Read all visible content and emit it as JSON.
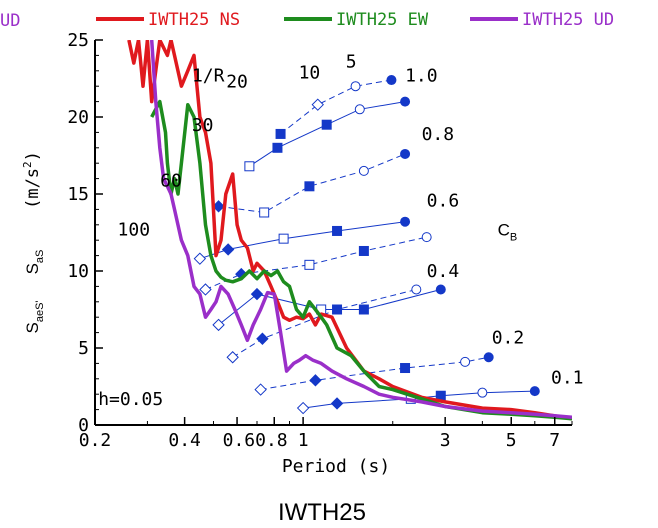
{
  "chart_data": {
    "type": "line",
    "title": "IWTH25",
    "xlabel": "Period (s)",
    "ylabel_left": "(m/s",
    "ylabel_sup": "2",
    "ylabel_sa": "S",
    "ylabel_sa_sub": "aS",
    "ylabel_sae": "S",
    "ylabel_sae_sub": "aeS'",
    "x_scale": "log",
    "xlim": [
      0.2,
      8
    ],
    "ylim": [
      0,
      25
    ],
    "x_ticks": [
      0.2,
      0.4,
      0.6,
      0.8,
      1,
      3,
      5,
      7
    ],
    "x_tick_labels": [
      "0.2",
      "0.4",
      "0.6",
      "0.8",
      "1",
      "3",
      "5",
      "7"
    ],
    "x_tick_label_text": [
      "0.2",
      "0.4",
      "0.60.8",
      "1",
      "3",
      "5",
      "7"
    ],
    "y_ticks": [
      0,
      5,
      10,
      15,
      20,
      25
    ],
    "y_tick_labels": [
      "0",
      "5",
      "10",
      "15",
      "20",
      "25"
    ],
    "legend_placement": "top",
    "legend_clipped_label": "UD",
    "series": [
      {
        "name": "IWTH25 NS",
        "color": "#e0191e",
        "x": [
          0.26,
          0.27,
          0.28,
          0.29,
          0.3,
          0.31,
          0.33,
          0.35,
          0.36,
          0.37,
          0.39,
          0.41,
          0.43,
          0.45,
          0.47,
          0.49,
          0.51,
          0.53,
          0.55,
          0.58,
          0.6,
          0.62,
          0.65,
          0.68,
          0.7,
          0.74,
          0.78,
          0.82,
          0.86,
          0.9,
          0.95,
          1.0,
          1.05,
          1.1,
          1.15,
          1.25,
          1.4,
          1.6,
          1.8,
          2.0,
          2.5,
          3.0,
          4.0,
          5.0,
          6.0,
          7.0,
          8.0
        ],
        "y": [
          25,
          23.5,
          25,
          22,
          25,
          21,
          25,
          24,
          25,
          24,
          22,
          23,
          24,
          20,
          19,
          17,
          11,
          12,
          15,
          16.3,
          13,
          12,
          11.5,
          10,
          10.5,
          10,
          9,
          8,
          7,
          6.8,
          7,
          6.9,
          7.2,
          6.5,
          7.2,
          7,
          5,
          3.5,
          3,
          2.5,
          1.8,
          1.5,
          1.1,
          1.0,
          0.8,
          0.6,
          0.4
        ]
      },
      {
        "name": "IWTH25 EW",
        "color": "#1e8c1e",
        "x": [
          0.31,
          0.33,
          0.345,
          0.35,
          0.36,
          0.37,
          0.38,
          0.39,
          0.41,
          0.43,
          0.45,
          0.46,
          0.47,
          0.49,
          0.51,
          0.53,
          0.55,
          0.58,
          0.62,
          0.66,
          0.7,
          0.74,
          0.78,
          0.82,
          0.86,
          0.9,
          0.95,
          1.0,
          1.05,
          1.1,
          1.15,
          1.2,
          1.3,
          1.45,
          1.6,
          1.8,
          2.0,
          2.5,
          3.0,
          4.0,
          5.0,
          6.0,
          7.0,
          8.0
        ],
        "y": [
          20,
          21,
          19,
          17,
          15,
          16,
          15,
          17,
          20.8,
          20,
          17,
          15,
          13,
          11,
          10,
          9.6,
          9.4,
          9.3,
          9.5,
          10,
          9.5,
          10,
          9.7,
          10,
          9.3,
          9,
          7.5,
          7,
          8,
          7.5,
          7,
          6.5,
          5,
          4.5,
          3.5,
          2.5,
          2.3,
          1.7,
          1.2,
          0.8,
          0.7,
          0.6,
          0.5,
          0.4
        ]
      },
      {
        "name": "IWTH25 UD",
        "color": "#9a2fc9",
        "x": [
          0.31,
          0.32,
          0.33,
          0.34,
          0.35,
          0.36,
          0.37,
          0.39,
          0.41,
          0.43,
          0.45,
          0.47,
          0.49,
          0.51,
          0.53,
          0.56,
          0.59,
          0.62,
          0.65,
          0.68,
          0.72,
          0.76,
          0.8,
          0.84,
          0.88,
          0.93,
          0.97,
          1.02,
          1.08,
          1.15,
          1.25,
          1.4,
          1.6,
          1.8,
          2.0,
          2.5,
          3.0,
          4.0,
          5.0,
          6.0,
          7.0,
          8.0
        ],
        "y": [
          25,
          21,
          18,
          16,
          15.5,
          15,
          14,
          12,
          11,
          9,
          8.5,
          7,
          7.5,
          8,
          9,
          8.5,
          7.5,
          6.5,
          5.5,
          6.5,
          7.5,
          8.6,
          8.5,
          6,
          3.5,
          4,
          4.2,
          4.5,
          4.2,
          4,
          3.5,
          3,
          2.5,
          2,
          1.8,
          1.5,
          1.2,
          0.9,
          0.8,
          0.7,
          0.6,
          0.5
        ]
      }
    ],
    "r_lines": [
      {
        "label": "1.0",
        "dashed": true,
        "points": [
          {
            "x": 0.84,
            "y": 18.9,
            "marker": "square-filled"
          },
          {
            "x": 1.12,
            "y": 20.8,
            "marker": "diamond-open"
          },
          {
            "x": 1.5,
            "y": 22,
            "marker": "circle-open"
          },
          {
            "x": 1.98,
            "y": 22.4,
            "marker": "circle-filled"
          }
        ]
      },
      {
        "label": "0.8",
        "dashed": false,
        "points": [
          {
            "x": 0.66,
            "y": 16.8,
            "marker": "square-open"
          },
          {
            "x": 0.82,
            "y": 18,
            "marker": "square-filled"
          },
          {
            "x": 1.2,
            "y": 19.5,
            "marker": "square-filled"
          },
          {
            "x": 1.55,
            "y": 20.5,
            "marker": "circle-open"
          },
          {
            "x": 2.2,
            "y": 21,
            "marker": "circle-filled"
          }
        ]
      },
      {
        "label": "0.6",
        "dashed": true,
        "points": [
          {
            "x": 0.52,
            "y": 14.2,
            "marker": "diamond-filled"
          },
          {
            "x": 0.74,
            "y": 13.8,
            "marker": "square-open"
          },
          {
            "x": 1.05,
            "y": 15.5,
            "marker": "square-filled"
          },
          {
            "x": 1.6,
            "y": 16.5,
            "marker": "circle-open"
          },
          {
            "x": 2.2,
            "y": 17.6,
            "marker": "circle-filled"
          }
        ]
      },
      {
        "label": "0.4",
        "dashed": false,
        "points": [
          {
            "x": 0.45,
            "y": 10.8,
            "marker": "diamond-open"
          },
          {
            "x": 0.56,
            "y": 11.4,
            "marker": "diamond-filled"
          },
          {
            "x": 0.86,
            "y": 12.1,
            "marker": "square-open"
          },
          {
            "x": 1.3,
            "y": 12.6,
            "marker": "square-filled"
          },
          {
            "x": 2.2,
            "y": 13.2,
            "marker": "circle-filled"
          }
        ]
      },
      {
        "label": "0.2",
        "dashed": true,
        "points": [
          {
            "x": 0.47,
            "y": 8.8,
            "marker": "diamond-open"
          },
          {
            "x": 0.62,
            "y": 9.8,
            "marker": "diamond-filled"
          },
          {
            "x": 1.05,
            "y": 10.4,
            "marker": "square-open"
          },
          {
            "x": 1.6,
            "y": 11.3,
            "marker": "square-filled"
          },
          {
            "x": 2.6,
            "y": 12.2,
            "marker": "circle-open"
          }
        ]
      },
      {
        "label": "0.1",
        "dashed": false,
        "points": [
          {
            "x": 0.52,
            "y": 6.5,
            "marker": "diamond-open"
          },
          {
            "x": 0.7,
            "y": 8.5,
            "marker": "diamond-filled"
          },
          {
            "x": 1.15,
            "y": 7.5,
            "marker": "square-open"
          },
          {
            "x": 1.6,
            "y": 7.5,
            "marker": "square-filled"
          },
          {
            "x": 2.9,
            "y": 8.8,
            "marker": "circle-filled"
          }
        ]
      }
    ],
    "cb_lines_extra": [
      {
        "dashed": true,
        "points": [
          {
            "x": 0.58,
            "y": 4.4,
            "marker": "diamond-open"
          },
          {
            "x": 0.73,
            "y": 5.6,
            "marker": "diamond-filled"
          },
          {
            "x": 1.3,
            "y": 7.5,
            "marker": "square-filled"
          },
          {
            "x": 2.4,
            "y": 8.8,
            "marker": "circle-open"
          }
        ]
      },
      {
        "dashed": true,
        "points": [
          {
            "x": 0.72,
            "y": 2.3,
            "marker": "diamond-open"
          },
          {
            "x": 1.1,
            "y": 2.9,
            "marker": "diamond-filled"
          },
          {
            "x": 2.2,
            "y": 3.7,
            "marker": "square-filled"
          },
          {
            "x": 3.5,
            "y": 4.1,
            "marker": "circle-open"
          },
          {
            "x": 4.2,
            "y": 4.4,
            "marker": "circle-filled"
          }
        ]
      },
      {
        "dashed": false,
        "points": [
          {
            "x": 1.0,
            "y": 1.1,
            "marker": "diamond-open"
          },
          {
            "x": 1.3,
            "y": 1.4,
            "marker": "diamond-filled"
          },
          {
            "x": 2.3,
            "y": 1.7,
            "marker": "square-open"
          },
          {
            "x": 2.9,
            "y": 1.9,
            "marker": "square-filled"
          },
          {
            "x": 4.0,
            "y": 2.1,
            "marker": "circle-open"
          },
          {
            "x": 6.0,
            "y": 2.2,
            "marker": "circle-filled"
          }
        ]
      }
    ],
    "annotations": {
      "r_header": "1/R",
      "r_values": [
        {
          "text": "20",
          "x": 0.6,
          "y": 21.9
        },
        {
          "text": "10",
          "x": 1.05,
          "y": 22.5
        },
        {
          "text": "5",
          "x": 1.45,
          "y": 23.2
        },
        {
          "text": "30",
          "x": 0.46,
          "y": 19.1
        },
        {
          "text": "60",
          "x": 0.36,
          "y": 15.5
        },
        {
          "text": "100",
          "x": 0.27,
          "y": 12.3
        }
      ],
      "r_header_pos": {
        "x": 0.48,
        "y": 22.3
      },
      "cb_values": [
        {
          "text": "1.0",
          "x": 2.2,
          "y": 22.3
        },
        {
          "text": "0.8",
          "x": 2.5,
          "y": 18.5
        },
        {
          "text": "0.6",
          "x": 2.6,
          "y": 14.2
        },
        {
          "text": "0.4",
          "x": 2.6,
          "y": 9.6
        },
        {
          "text": "0.2",
          "x": 4.3,
          "y": 5.3
        },
        {
          "text": "0.1",
          "x": 6.8,
          "y": 2.7
        }
      ],
      "cb_label": "C",
      "cb_label_sub": "B",
      "cb_label_pos": {
        "x": 4.5,
        "y": 12.3
      },
      "damping": "h=0.05",
      "damping_pos": {
        "x": 0.205,
        "y": 1.3
      }
    }
  }
}
